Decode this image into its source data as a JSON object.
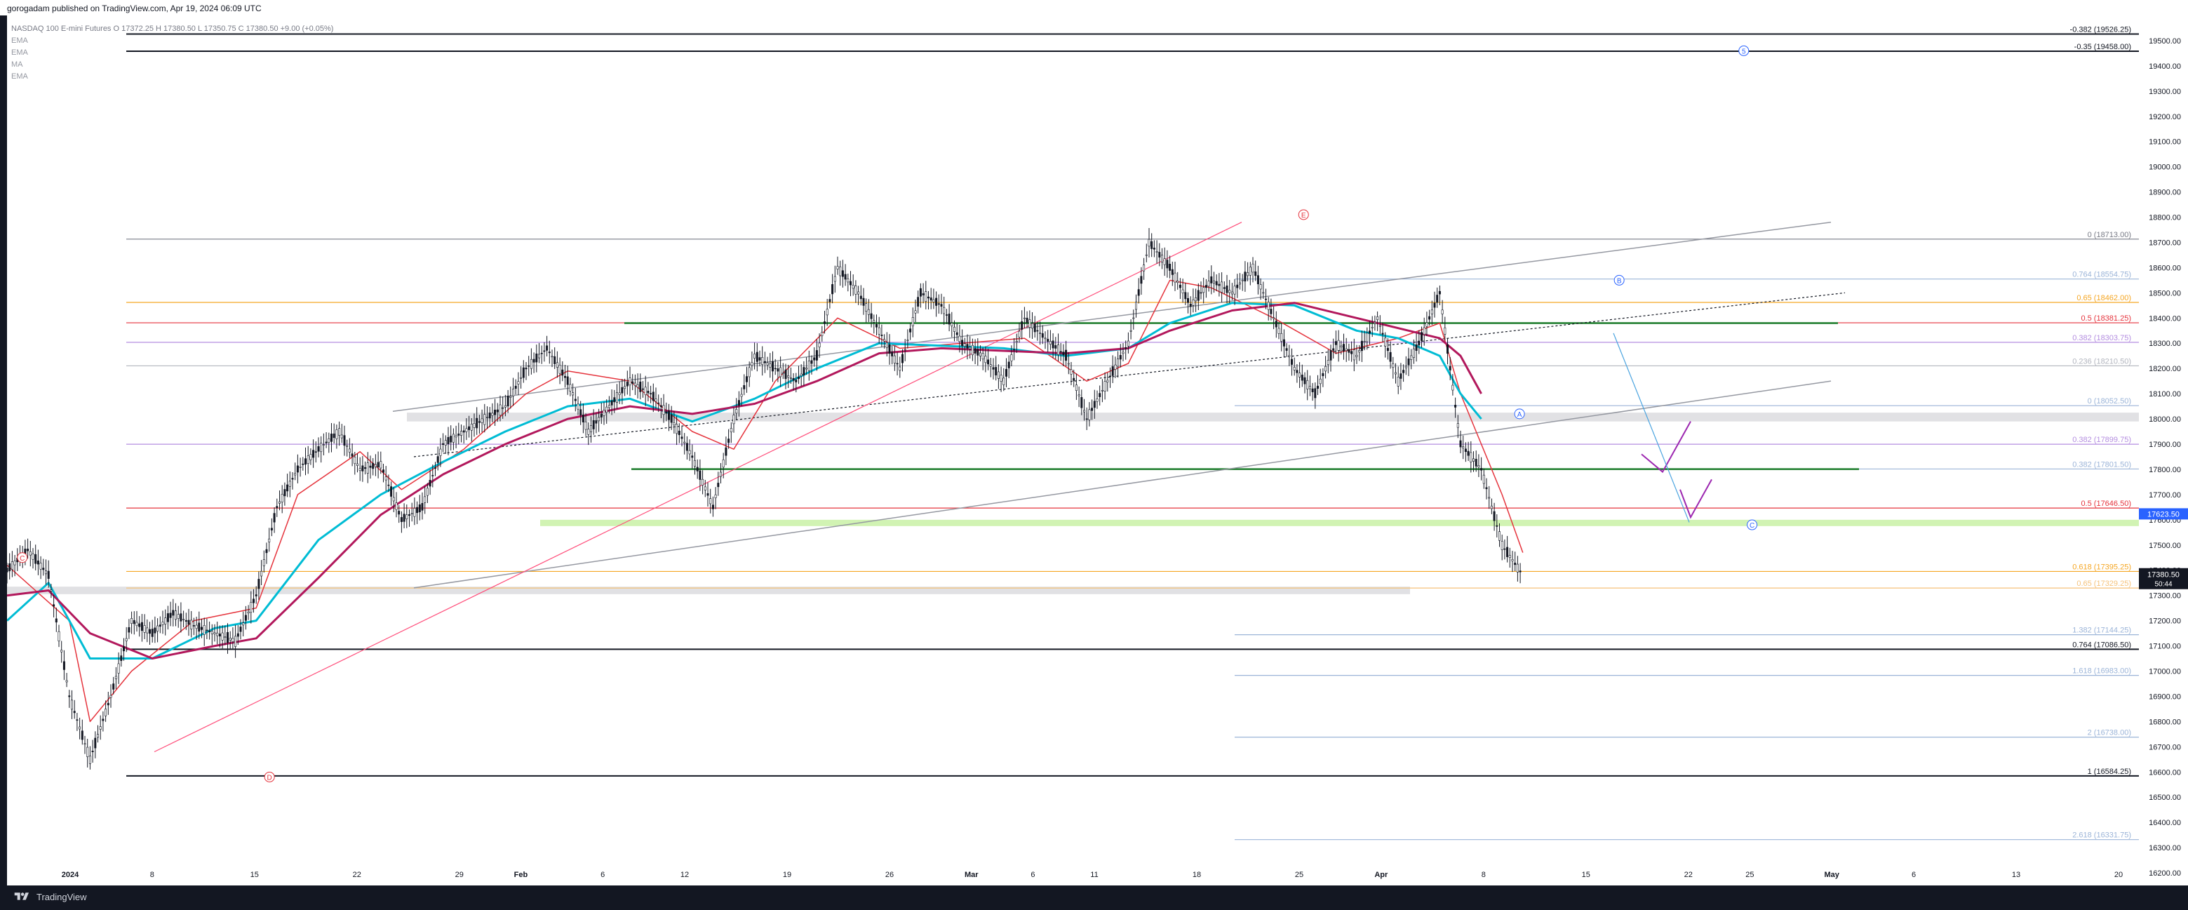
{
  "header": {
    "publisher": "gorogadam published on TradingView.com, Apr 19, 2024 06:09 UTC"
  },
  "legend": {
    "symbol": "NASDAQ 100 E-mini Futures",
    "ohlc": "O 17372.25 H 17380.50 L 17350.75 C 17380.50 +9.00 (+0.05%)",
    "indicators": [
      "EMA",
      "EMA",
      "MA",
      "EMA"
    ]
  },
  "footer": {
    "brand": "TradingView"
  },
  "colors": {
    "fast_ema": "#e5333c",
    "cyan_ma": "#00bcd4",
    "purple_ema": "#b2185c",
    "green_line": "#1b7c2a",
    "price_tag": "#2962ff"
  },
  "chart_data": {
    "type": "candlestick",
    "title": "",
    "symbol": "NASDAQ 100 E-mini Futures",
    "ylim": [
      16150,
      19600
    ],
    "y_ticks": [
      16200,
      16300,
      16400,
      16500,
      16600,
      16700,
      16800,
      16900,
      17000,
      17100,
      17200,
      17300,
      17400,
      17500,
      17600,
      17700,
      17800,
      17900,
      18000,
      18100,
      18200,
      18300,
      18400,
      18500,
      18600,
      18700,
      18800,
      18900,
      19000,
      19100,
      19200,
      19300,
      19400,
      19500
    ],
    "y_tick_labels": [
      "16200.00",
      "16300.00",
      "16400.00",
      "16500.00",
      "16600.00",
      "16700.00",
      "16800.00",
      "16900.00",
      "17000.00",
      "17100.00",
      "17200.00",
      "17300.00",
      "17400.00",
      "17500.00",
      "17600.00",
      "17700.00",
      "17800.00",
      "17900.00",
      "18000.00",
      "18100.00",
      "18200.00",
      "18300.00",
      "18400.00",
      "18500.00",
      "18600.00",
      "18700.00",
      "18800.00",
      "18900.00",
      "19000.00",
      "19100.00",
      "19200.00",
      "19300.00",
      "19400.00",
      "19500.00"
    ],
    "x_tick_labels": [
      "2024",
      "8",
      "15",
      "22",
      "29",
      "Feb",
      "6",
      "12",
      "19",
      "26",
      "Mar",
      "6",
      "11",
      "18",
      "25",
      "Apr",
      "8",
      "15",
      "22",
      "25",
      "May",
      "6",
      "13",
      "20"
    ],
    "x_tick_index": [
      0,
      4,
      9,
      14,
      19,
      22,
      26,
      30,
      35,
      40,
      44,
      47,
      50,
      55,
      60,
      64,
      69,
      74,
      79,
      82,
      86,
      90,
      95,
      100
    ],
    "last_price": "17380.50",
    "countdown": "50:44",
    "marked_price": "17623.50",
    "price_series": [
      [
        0,
        17400
      ],
      [
        1,
        17480
      ],
      [
        2,
        17380
      ],
      [
        3,
        16900
      ],
      [
        4,
        16650
      ],
      [
        5,
        16900
      ],
      [
        6,
        17200
      ],
      [
        7,
        17150
      ],
      [
        8,
        17230
      ],
      [
        9,
        17180
      ],
      [
        10,
        17150
      ],
      [
        11,
        17120
      ],
      [
        12,
        17300
      ],
      [
        13,
        17650
      ],
      [
        14,
        17800
      ],
      [
        15,
        17880
      ],
      [
        16,
        17950
      ],
      [
        17,
        17800
      ],
      [
        18,
        17820
      ],
      [
        19,
        17600
      ],
      [
        20,
        17650
      ],
      [
        21,
        17900
      ],
      [
        22,
        17950
      ],
      [
        23,
        18000
      ],
      [
        24,
        18050
      ],
      [
        25,
        18200
      ],
      [
        26,
        18280
      ],
      [
        27,
        18150
      ],
      [
        28,
        17950
      ],
      [
        29,
        18050
      ],
      [
        30,
        18150
      ],
      [
        31,
        18100
      ],
      [
        32,
        18000
      ],
      [
        33,
        17850
      ],
      [
        34,
        17650
      ],
      [
        35,
        18000
      ],
      [
        36,
        18250
      ],
      [
        37,
        18200
      ],
      [
        38,
        18150
      ],
      [
        39,
        18250
      ],
      [
        40,
        18600
      ],
      [
        41,
        18500
      ],
      [
        42,
        18350
      ],
      [
        43,
        18200
      ],
      [
        44,
        18500
      ],
      [
        45,
        18450
      ],
      [
        46,
        18300
      ],
      [
        47,
        18250
      ],
      [
        48,
        18150
      ],
      [
        49,
        18400
      ],
      [
        50,
        18320
      ],
      [
        51,
        18250
      ],
      [
        52,
        18000
      ],
      [
        53,
        18150
      ],
      [
        54,
        18300
      ],
      [
        55,
        18700
      ],
      [
        56,
        18600
      ],
      [
        57,
        18450
      ],
      [
        58,
        18550
      ],
      [
        59,
        18500
      ],
      [
        60,
        18600
      ],
      [
        61,
        18400
      ],
      [
        62,
        18200
      ],
      [
        63,
        18100
      ],
      [
        64,
        18300
      ],
      [
        65,
        18250
      ],
      [
        66,
        18400
      ],
      [
        67,
        18150
      ],
      [
        68,
        18300
      ],
      [
        69,
        18500
      ],
      [
        70,
        17900
      ],
      [
        71,
        17800
      ],
      [
        72,
        17500
      ],
      [
        73,
        17380
      ]
    ],
    "series": [
      {
        "name": "EMA",
        "role": "fast",
        "values": [
          [
            0,
            17420
          ],
          [
            3,
            17200
          ],
          [
            4,
            16800
          ],
          [
            6,
            17000
          ],
          [
            9,
            17200
          ],
          [
            12,
            17250
          ],
          [
            14,
            17700
          ],
          [
            17,
            17870
          ],
          [
            19,
            17720
          ],
          [
            22,
            17880
          ],
          [
            25,
            18100
          ],
          [
            27,
            18190
          ],
          [
            30,
            18150
          ],
          [
            33,
            17950
          ],
          [
            35,
            17880
          ],
          [
            37,
            18150
          ],
          [
            40,
            18400
          ],
          [
            43,
            18280
          ],
          [
            46,
            18300
          ],
          [
            49,
            18320
          ],
          [
            52,
            18150
          ],
          [
            54,
            18220
          ],
          [
            56,
            18550
          ],
          [
            58,
            18520
          ],
          [
            61,
            18400
          ],
          [
            64,
            18260
          ],
          [
            67,
            18320
          ],
          [
            69,
            18380
          ],
          [
            70,
            18100
          ],
          [
            71,
            17900
          ],
          [
            72,
            17700
          ],
          [
            73,
            17470
          ]
        ]
      },
      {
        "name": "MA",
        "role": "cyan",
        "values": [
          [
            0,
            17200
          ],
          [
            2,
            17350
          ],
          [
            4,
            17050
          ],
          [
            7,
            17050
          ],
          [
            10,
            17170
          ],
          [
            12,
            17200
          ],
          [
            15,
            17520
          ],
          [
            18,
            17700
          ],
          [
            21,
            17830
          ],
          [
            24,
            17950
          ],
          [
            27,
            18050
          ],
          [
            30,
            18080
          ],
          [
            33,
            17990
          ],
          [
            36,
            18080
          ],
          [
            39,
            18200
          ],
          [
            42,
            18300
          ],
          [
            45,
            18290
          ],
          [
            48,
            18280
          ],
          [
            51,
            18250
          ],
          [
            54,
            18280
          ],
          [
            56,
            18380
          ],
          [
            59,
            18460
          ],
          [
            62,
            18450
          ],
          [
            65,
            18350
          ],
          [
            67,
            18320
          ],
          [
            69,
            18250
          ],
          [
            70,
            18100
          ],
          [
            71,
            18000
          ]
        ]
      },
      {
        "name": "EMA",
        "role": "slow",
        "values": [
          [
            0,
            17300
          ],
          [
            2,
            17320
          ],
          [
            4,
            17150
          ],
          [
            7,
            17050
          ],
          [
            10,
            17100
          ],
          [
            12,
            17130
          ],
          [
            15,
            17370
          ],
          [
            18,
            17620
          ],
          [
            21,
            17780
          ],
          [
            24,
            17900
          ],
          [
            27,
            18000
          ],
          [
            30,
            18050
          ],
          [
            33,
            18020
          ],
          [
            36,
            18060
          ],
          [
            39,
            18150
          ],
          [
            42,
            18260
          ],
          [
            45,
            18280
          ],
          [
            48,
            18270
          ],
          [
            51,
            18260
          ],
          [
            54,
            18280
          ],
          [
            56,
            18350
          ],
          [
            59,
            18430
          ],
          [
            62,
            18460
          ],
          [
            65,
            18400
          ],
          [
            67,
            18360
          ],
          [
            69,
            18320
          ],
          [
            70,
            18250
          ],
          [
            71,
            18100
          ]
        ]
      }
    ],
    "levels": [
      {
        "label": "-0.382 (19526.25)",
        "value": 19526.25,
        "color": "#131722"
      },
      {
        "label": "-0.35 (19458.00)",
        "value": 19458.0,
        "color": "#131722"
      },
      {
        "label": "0 (18713.00)",
        "value": 18713.0,
        "color": "#787b86"
      },
      {
        "label": "0.764 (18554.75)",
        "value": 18554.75,
        "color": "#9bb4d8"
      },
      {
        "label": "0.65 (18462.00)",
        "value": 18462.0,
        "color": "#f5a623"
      },
      {
        "label": "0.5 (18381.25)",
        "value": 18381.25,
        "color": "#e5333c"
      },
      {
        "label": "0.382 (18303.75)",
        "value": 18303.75,
        "color": "#b48ee0"
      },
      {
        "label": "0.236 (18210.50)",
        "value": 18210.5,
        "color": "#b2b5be"
      },
      {
        "label": "0 (18052.50)",
        "value": 18052.5,
        "color": "#9bb4d8"
      },
      {
        "label": "0.382 (17899.75)",
        "value": 17899.75,
        "color": "#b48ee0"
      },
      {
        "label": "0.382 (17801.50)",
        "value": 17801.5,
        "color": "#9bb4d8"
      },
      {
        "label": "0.5 (17646.50)",
        "value": 17646.5,
        "color": "#e5333c"
      },
      {
        "label": "0.618 (17395.25)",
        "value": 17395.25,
        "color": "#f5a623"
      },
      {
        "label": "0.65 (17329.25)",
        "value": 17329.25,
        "color": "#f5c27a"
      },
      {
        "label": "1.382 (17144.25)",
        "value": 17144.25,
        "color": "#9bb4d8"
      },
      {
        "label": "0.764 (17086.50)",
        "value": 17086.5,
        "color": "#131722"
      },
      {
        "label": "1.618 (16983.00)",
        "value": 16983.0,
        "color": "#9bb4d8"
      },
      {
        "label": "2 (16738.00)",
        "value": 16738.0,
        "color": "#9bb4d8"
      },
      {
        "label": "1 (16584.25)",
        "value": 16584.25,
        "color": "#131722"
      },
      {
        "label": "2.618 (16331.75)",
        "value": 16331.75,
        "color": "#9bb4d8"
      }
    ],
    "wave_labels": [
      "C",
      "D",
      "E",
      "B",
      "A",
      "C",
      "5"
    ],
    "grid": false
  }
}
